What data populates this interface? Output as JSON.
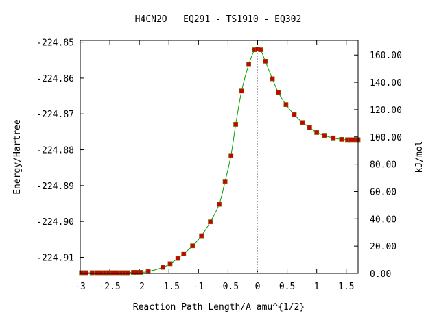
{
  "chart_data": {
    "type": "line",
    "title": "H4CN2O   EQ291 - TS1910 - EQ302",
    "xlabel": "Reaction Path Length/A amu^{1/2}",
    "ylabel": "Energy/Hartree",
    "y2label": "kJ/mol",
    "xlim": [
      -3,
      1.7
    ],
    "ylim": [
      -224.9145,
      -224.8495
    ],
    "y2lim": [
      0,
      170.66
    ],
    "x_ticks": [
      "-3",
      "-2.5",
      "-2",
      "-1.5",
      "-1",
      "-0.5",
      "0",
      "0.5",
      "1",
      "1.5"
    ],
    "y_ticks": [
      "-224.85",
      "-224.86",
      "-224.87",
      "-224.88",
      "-224.89",
      "-224.90",
      "-224.91"
    ],
    "y2_ticks": [
      "0.00",
      "20.00",
      "40.00",
      "60.00",
      "80.00",
      "100.00",
      "120.00",
      "140.00",
      "160.00"
    ],
    "ts_x": 0,
    "grid": false,
    "colors": {
      "line": "#00a000",
      "marker": "#cc0000",
      "marker_edge": "#7a5a00",
      "ts_line": "#aaaaaa"
    },
    "series": [
      {
        "x": [
          -2.98,
          -2.9,
          -2.8,
          -2.72,
          -2.65,
          -2.58,
          -2.52,
          -2.45,
          -2.38,
          -2.3,
          -2.25,
          -2.2,
          -2.1,
          -2.05,
          -1.98,
          -1.85,
          -1.6,
          -1.48,
          -1.35,
          -1.25,
          -1.1,
          -0.95,
          -0.8,
          -0.65,
          -0.55,
          -0.45,
          -0.37,
          -0.27,
          -0.15,
          -0.05,
          0.0,
          0.05,
          0.13,
          0.25,
          0.35,
          0.48,
          0.62,
          0.76,
          0.88,
          1.0,
          1.13,
          1.28,
          1.42,
          1.52,
          1.58,
          1.65,
          1.7
        ],
        "y": [
          -224.9143,
          -224.9143,
          -224.9143,
          -224.9143,
          -224.9143,
          -224.9143,
          -224.9143,
          -224.9143,
          -224.9143,
          -224.9143,
          -224.9143,
          -224.9143,
          -224.9142,
          -224.9142,
          -224.9142,
          -224.914,
          -224.9128,
          -224.9118,
          -224.9103,
          -224.909,
          -224.9068,
          -224.904,
          -224.9001,
          -224.8952,
          -224.8888,
          -224.8816,
          -224.8729,
          -224.8636,
          -224.8562,
          -224.8521,
          -224.8519,
          -224.8521,
          -224.8553,
          -224.8602,
          -224.864,
          -224.8674,
          -224.8702,
          -224.8724,
          -224.8738,
          -224.8752,
          -224.876,
          -224.8767,
          -224.8771,
          -224.8772,
          -224.8772,
          -224.8772,
          -224.8772
        ]
      }
    ]
  }
}
